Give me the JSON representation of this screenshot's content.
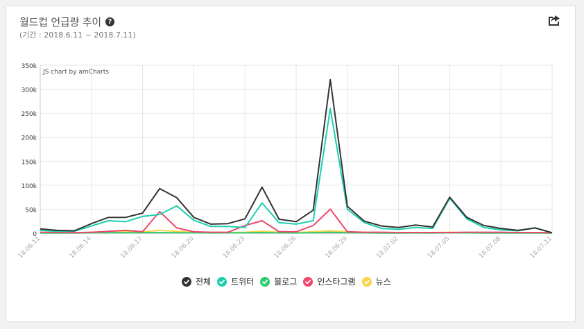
{
  "header": {
    "title": "월드컵 언급량 추이",
    "help_icon": "question-circle-icon",
    "subtitle": "(기간 : 2018.6.11 ~ 2018.7.11)",
    "share_icon": "share-icon"
  },
  "chart_data": {
    "type": "line",
    "watermark": "JS chart by amCharts",
    "grid": true,
    "ylim": [
      0,
      350000
    ],
    "y_ticks": [
      "0",
      "50k",
      "100k",
      "150k",
      "200k",
      "250k",
      "300k",
      "350k"
    ],
    "x": [
      "18.06.11",
      "18.06.12",
      "18.06.13",
      "18.06.14",
      "18.06.15",
      "18.06.16",
      "18.06.17",
      "18.06.18",
      "18.06.19",
      "18.06.20",
      "18.06.21",
      "18.06.22",
      "18.06.23",
      "18.06.24",
      "18.06.25",
      "18.06.26",
      "18.06.27",
      "18.06.28",
      "18.06.29",
      "18.06.30",
      "18.07.01",
      "18.07.02",
      "18.07.03",
      "18.07.04",
      "18.07.05",
      "18.07.06",
      "18.07.07",
      "18.07.08",
      "18.07.09",
      "18.07.10",
      "18.07.11"
    ],
    "x_tick_labels": [
      "18.06.11",
      "18.06.14",
      "18.06.17",
      "18.06.20",
      "18.06.23",
      "18.06.26",
      "18.06.29",
      "18.07.02",
      "18.07.05",
      "18.07.08",
      "18.07.11"
    ],
    "legend_position": "bottom",
    "series": [
      {
        "name": "전체",
        "color": "#333333",
        "values": [
          9000,
          6000,
          5000,
          20000,
          33000,
          33000,
          42000,
          93000,
          74000,
          33000,
          19000,
          20000,
          30000,
          96000,
          29000,
          24000,
          48000,
          320000,
          56000,
          25000,
          15000,
          12000,
          17000,
          13000,
          75000,
          33000,
          16000,
          10000,
          6000,
          11000,
          1000
        ]
      },
      {
        "name": "트위터",
        "color": "#1ccfb0",
        "values": [
          6000,
          4000,
          4000,
          15000,
          26000,
          24000,
          35000,
          39000,
          57000,
          27000,
          14000,
          14000,
          12000,
          63000,
          22000,
          19000,
          26000,
          260000,
          50000,
          22000,
          10000,
          8000,
          12000,
          10000,
          73000,
          30000,
          12000,
          7000,
          5000,
          11000,
          1000
        ]
      },
      {
        "name": "블로그",
        "color": "#2ecc71",
        "values": [
          500,
          500,
          500,
          800,
          1000,
          1000,
          1000,
          1500,
          1200,
          800,
          600,
          700,
          900,
          1500,
          700,
          600,
          1000,
          2000,
          1200,
          700,
          500,
          500,
          600,
          500,
          800,
          700,
          500,
          500,
          400,
          400,
          300
        ]
      },
      {
        "name": "인스타그램",
        "color": "#f0476e",
        "values": [
          2000,
          1500,
          1000,
          2000,
          4000,
          6000,
          3000,
          45000,
          11000,
          3000,
          2000,
          2000,
          16000,
          26000,
          3000,
          3000,
          16000,
          50000,
          3000,
          2000,
          2000,
          1500,
          1500,
          1500,
          1500,
          2000,
          2000,
          2000,
          1500,
          1500,
          1000
        ]
      },
      {
        "name": "뉴스",
        "color": "#f7d548",
        "values": [
          1000,
          1000,
          1000,
          2000,
          2000,
          3000,
          3000,
          6000,
          4000,
          2000,
          1500,
          1500,
          2000,
          4000,
          2000,
          1500,
          3000,
          5000,
          3000,
          2000,
          1500,
          1500,
          1500,
          1500,
          2000,
          1500,
          1500,
          1500,
          1500,
          1500,
          1000
        ]
      }
    ]
  }
}
